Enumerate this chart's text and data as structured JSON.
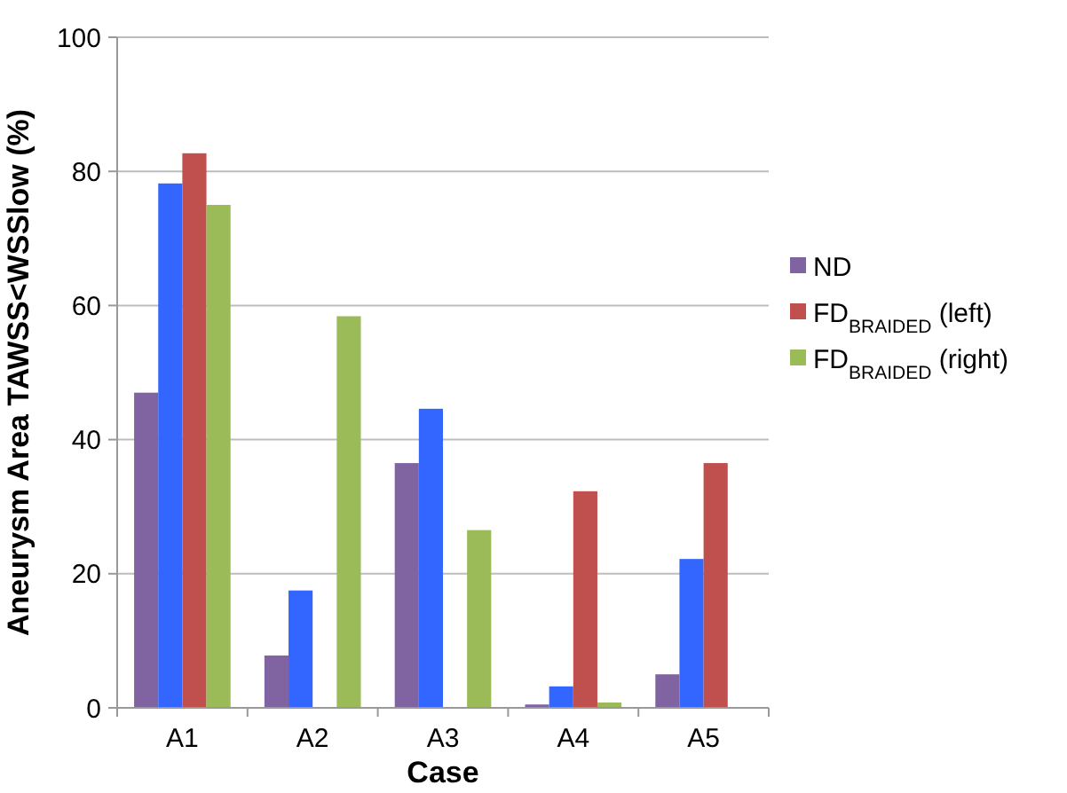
{
  "chart_data": {
    "type": "bar",
    "xlabel": "Case",
    "ylabel": "Aneurysm Area TAWSS<WSSlow (%)",
    "categories": [
      "A1",
      "A2",
      "A3",
      "A4",
      "A5"
    ],
    "series": [
      {
        "name": "ND",
        "color": "#8064a2",
        "values": [
          47.0,
          7.8,
          36.5,
          0.5,
          5.0
        ]
      },
      {
        "color": "#3366ff",
        "values": [
          78.2,
          17.5,
          44.6,
          3.2,
          22.2
        ]
      },
      {
        "name": "FD$_{BRAIDED}$ (left)",
        "color": "#c0504d",
        "values": [
          82.7,
          null,
          null,
          32.3,
          36.5
        ]
      },
      {
        "name": "FD$_{BRAIDED}$ (right)",
        "color": "#9bbb59",
        "values": [
          75.0,
          58.4,
          26.5,
          0.8,
          null
        ]
      }
    ],
    "ylim": [
      0,
      100
    ],
    "yticks": [
      0,
      20,
      40,
      60,
      80,
      100
    ],
    "grid": "y",
    "legend": "right"
  }
}
